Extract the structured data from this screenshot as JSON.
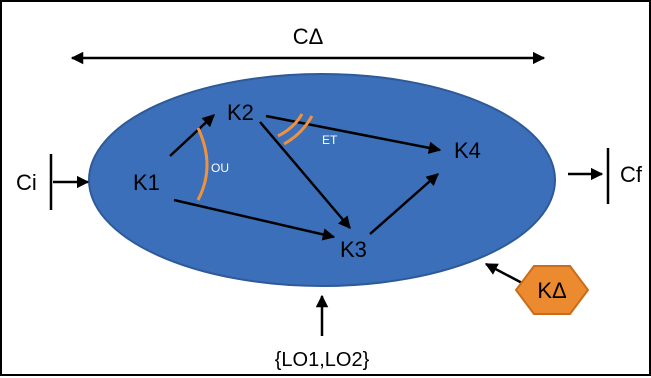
{
  "colors": {
    "ellipse_fill": "#3b6fba",
    "ellipse_stroke": "#2e5a98",
    "arc": "#f0913d",
    "hexagon_fill": "#ec8a2f",
    "hexagon_stroke": "#c96d1a",
    "arrow": "#000000"
  },
  "top_span": {
    "label": "CΔ"
  },
  "nodes": {
    "k1": "K1",
    "k2": "K2",
    "k3": "K3",
    "k4": "K4"
  },
  "arcs": {
    "or_label": "OU",
    "and_label": "ET"
  },
  "entry": {
    "label": "Ci"
  },
  "exit": {
    "label": "Cf"
  },
  "bottom_input": {
    "label": "{LO1,LO2}"
  },
  "hexagon": {
    "label": "KΔ"
  }
}
